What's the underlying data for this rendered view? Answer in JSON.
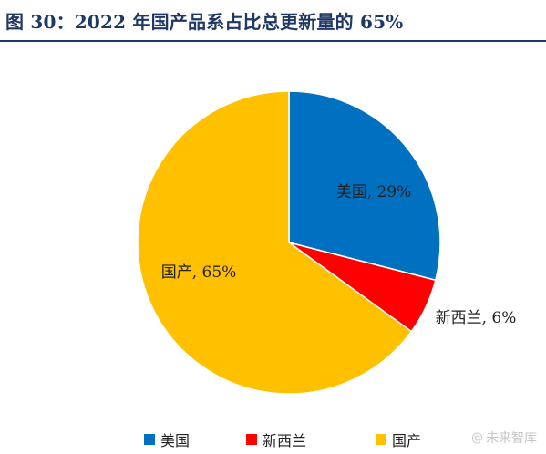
{
  "title": "图 30：2022 年国产品系占比总更新量的 65%",
  "chart_data": {
    "type": "pie",
    "slices": [
      {
        "label": "美国",
        "value": 29,
        "display": "美国, 29%",
        "color": "#0070c0"
      },
      {
        "label": "新西兰",
        "value": 6,
        "display": "新西兰, 6%",
        "color": "#ff0000"
      },
      {
        "label": "国产",
        "value": 65,
        "display": "国产, 65%",
        "color": "#ffc000"
      }
    ],
    "legend_position": "bottom"
  },
  "watermark": {
    "icon": "at-sign-icon",
    "text": "未来智库"
  }
}
